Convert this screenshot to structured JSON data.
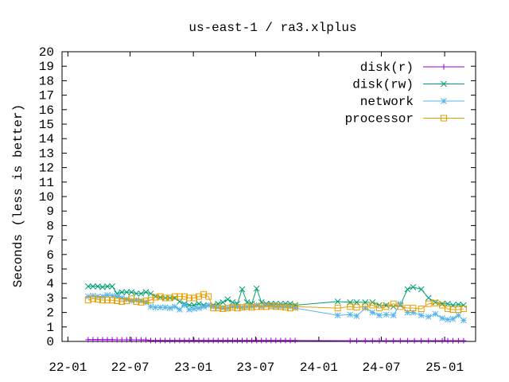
{
  "chart_data": {
    "type": "line",
    "title": "us-east-1 / ra3.xlplus",
    "xlabel": "",
    "ylabel": "Seconds (less is better)",
    "ylim": [
      0,
      20
    ],
    "xlim": [
      "2021-12-15",
      "2025-04-01"
    ],
    "yticks": [
      0,
      1,
      2,
      3,
      4,
      5,
      6,
      7,
      8,
      9,
      10,
      11,
      12,
      13,
      14,
      15,
      16,
      17,
      18,
      19,
      20
    ],
    "xticks": [
      {
        "label": "22-01",
        "date": "2022-01-01"
      },
      {
        "label": "22-07",
        "date": "2022-07-01"
      },
      {
        "label": "23-01",
        "date": "2023-01-01"
      },
      {
        "label": "23-07",
        "date": "2023-07-01"
      },
      {
        "label": "24-01",
        "date": "2024-01-01"
      },
      {
        "label": "24-07",
        "date": "2024-07-01"
      },
      {
        "label": "25-01",
        "date": "2025-01-01"
      }
    ],
    "legend_position": "top-right",
    "grid": false,
    "series": [
      {
        "name": "disk(r)",
        "color": "#9400d3",
        "marker": "plus",
        "points": [
          [
            "2022-03-01",
            0.12
          ],
          [
            "2022-03-15",
            0.12
          ],
          [
            "2022-03-29",
            0.12
          ],
          [
            "2022-04-12",
            0.12
          ],
          [
            "2022-04-26",
            0.12
          ],
          [
            "2022-05-10",
            0.12
          ],
          [
            "2022-05-24",
            0.11
          ],
          [
            "2022-06-07",
            0.11
          ],
          [
            "2022-06-21",
            0.11
          ],
          [
            "2022-07-05",
            0.11
          ],
          [
            "2022-07-19",
            0.11
          ],
          [
            "2022-08-02",
            0.1
          ],
          [
            "2022-08-16",
            0.1
          ],
          [
            "2022-08-30",
            0.06
          ],
          [
            "2022-09-13",
            0.06
          ],
          [
            "2022-09-27",
            0.06
          ],
          [
            "2022-10-11",
            0.06
          ],
          [
            "2022-10-25",
            0.06
          ],
          [
            "2022-11-08",
            0.06
          ],
          [
            "2022-11-22",
            0.06
          ],
          [
            "2022-12-06",
            0.06
          ],
          [
            "2022-12-20",
            0.06
          ],
          [
            "2023-01-03",
            0.06
          ],
          [
            "2023-01-17",
            0.06
          ],
          [
            "2023-01-31",
            0.06
          ],
          [
            "2023-02-14",
            0.06
          ],
          [
            "2023-02-28",
            0.06
          ],
          [
            "2023-03-14",
            0.06
          ],
          [
            "2023-03-28",
            0.06
          ],
          [
            "2023-04-11",
            0.06
          ],
          [
            "2023-04-25",
            0.06
          ],
          [
            "2023-05-09",
            0.06
          ],
          [
            "2023-05-23",
            0.06
          ],
          [
            "2023-06-06",
            0.06
          ],
          [
            "2023-06-20",
            0.06
          ],
          [
            "2023-07-04",
            0.06
          ],
          [
            "2023-07-18",
            0.06
          ],
          [
            "2023-08-01",
            0.06
          ],
          [
            "2023-08-15",
            0.06
          ],
          [
            "2023-08-29",
            0.06
          ],
          [
            "2023-09-12",
            0.06
          ],
          [
            "2023-09-26",
            0.06
          ],
          [
            "2023-10-10",
            0.06
          ],
          [
            "2023-10-24",
            0.06
          ],
          [
            "2024-04-01",
            0.05
          ],
          [
            "2024-04-20",
            0.05
          ],
          [
            "2024-05-15",
            0.05
          ],
          [
            "2024-06-05",
            0.05
          ],
          [
            "2024-06-25",
            0.05
          ],
          [
            "2024-07-15",
            0.05
          ],
          [
            "2024-08-05",
            0.05
          ],
          [
            "2024-08-25",
            0.05
          ],
          [
            "2024-09-15",
            0.05
          ],
          [
            "2024-10-05",
            0.05
          ],
          [
            "2024-10-25",
            0.05
          ],
          [
            "2024-11-15",
            0.05
          ],
          [
            "2024-12-05",
            0.05
          ],
          [
            "2024-12-25",
            0.05
          ],
          [
            "2025-01-10",
            0.05
          ],
          [
            "2025-01-25",
            0.05
          ],
          [
            "2025-02-10",
            0.05
          ],
          [
            "2025-02-25",
            0.05
          ]
        ]
      },
      {
        "name": "disk(rw)",
        "color": "#009e73",
        "marker": "x",
        "points": [
          [
            "2022-03-01",
            3.8
          ],
          [
            "2022-03-15",
            3.8
          ],
          [
            "2022-03-29",
            3.8
          ],
          [
            "2022-04-12",
            3.75
          ],
          [
            "2022-04-26",
            3.8
          ],
          [
            "2022-05-10",
            3.8
          ],
          [
            "2022-05-24",
            3.3
          ],
          [
            "2022-06-07",
            3.4
          ],
          [
            "2022-06-21",
            3.4
          ],
          [
            "2022-07-05",
            3.4
          ],
          [
            "2022-07-19",
            3.3
          ],
          [
            "2022-08-02",
            3.3
          ],
          [
            "2022-08-16",
            3.4
          ],
          [
            "2022-08-30",
            3.3
          ],
          [
            "2022-09-13",
            3.1
          ],
          [
            "2022-09-27",
            3.05
          ],
          [
            "2022-10-11",
            3.0
          ],
          [
            "2022-10-25",
            3.0
          ],
          [
            "2022-11-08",
            3.0
          ],
          [
            "2022-11-22",
            2.75
          ],
          [
            "2022-12-06",
            2.6
          ],
          [
            "2022-12-20",
            2.5
          ],
          [
            "2023-01-03",
            2.5
          ],
          [
            "2023-01-17",
            2.6
          ],
          [
            "2023-01-31",
            2.5
          ],
          [
            "2023-02-14",
            2.5
          ],
          [
            "2023-02-28",
            2.5
          ],
          [
            "2023-03-14",
            2.6
          ],
          [
            "2023-03-28",
            2.7
          ],
          [
            "2023-04-11",
            2.9
          ],
          [
            "2023-04-25",
            2.7
          ],
          [
            "2023-05-09",
            2.6
          ],
          [
            "2023-05-23",
            3.6
          ],
          [
            "2023-06-06",
            2.7
          ],
          [
            "2023-06-20",
            2.6
          ],
          [
            "2023-07-04",
            3.65
          ],
          [
            "2023-07-18",
            2.7
          ],
          [
            "2023-08-01",
            2.6
          ],
          [
            "2023-08-15",
            2.6
          ],
          [
            "2023-08-29",
            2.6
          ],
          [
            "2023-09-12",
            2.6
          ],
          [
            "2023-09-26",
            2.6
          ],
          [
            "2023-10-10",
            2.6
          ],
          [
            "2023-10-24",
            2.5
          ],
          [
            "2024-02-25",
            2.75
          ],
          [
            "2024-04-01",
            2.7
          ],
          [
            "2024-04-20",
            2.7
          ],
          [
            "2024-05-15",
            2.7
          ],
          [
            "2024-06-05",
            2.7
          ],
          [
            "2024-06-25",
            2.5
          ],
          [
            "2024-07-15",
            2.5
          ],
          [
            "2024-08-05",
            2.4
          ],
          [
            "2024-08-25",
            2.5
          ],
          [
            "2024-09-15",
            3.6
          ],
          [
            "2024-10-01",
            3.75
          ],
          [
            "2024-10-25",
            3.6
          ],
          [
            "2024-11-15",
            3.0
          ],
          [
            "2024-12-05",
            2.7
          ],
          [
            "2024-12-25",
            2.6
          ],
          [
            "2025-01-10",
            2.6
          ],
          [
            "2025-01-25",
            2.5
          ],
          [
            "2025-02-10",
            2.55
          ],
          [
            "2025-02-25",
            2.5
          ]
        ]
      },
      {
        "name": "network",
        "color": "#56b4e9",
        "marker": "star",
        "points": [
          [
            "2022-03-01",
            3.1
          ],
          [
            "2022-03-15",
            3.15
          ],
          [
            "2022-03-29",
            3.1
          ],
          [
            "2022-04-12",
            3.1
          ],
          [
            "2022-04-26",
            3.2
          ],
          [
            "2022-05-10",
            3.15
          ],
          [
            "2022-05-24",
            3.1
          ],
          [
            "2022-06-07",
            3.0
          ],
          [
            "2022-06-21",
            2.9
          ],
          [
            "2022-07-05",
            2.8
          ],
          [
            "2022-07-19",
            2.85
          ],
          [
            "2022-08-02",
            2.8
          ],
          [
            "2022-08-16",
            2.7
          ],
          [
            "2022-08-30",
            2.4
          ],
          [
            "2022-09-13",
            2.35
          ],
          [
            "2022-09-27",
            2.35
          ],
          [
            "2022-10-11",
            2.35
          ],
          [
            "2022-10-25",
            2.3
          ],
          [
            "2022-11-08",
            2.4
          ],
          [
            "2022-11-22",
            2.2
          ],
          [
            "2022-12-06",
            2.5
          ],
          [
            "2022-12-20",
            2.2
          ],
          [
            "2023-01-03",
            2.25
          ],
          [
            "2023-01-17",
            2.3
          ],
          [
            "2023-01-31",
            2.4
          ],
          [
            "2023-02-14",
            2.5
          ],
          [
            "2023-02-28",
            2.4
          ],
          [
            "2023-03-14",
            2.35
          ],
          [
            "2023-03-28",
            2.3
          ],
          [
            "2023-04-11",
            2.3
          ],
          [
            "2023-04-25",
            2.4
          ],
          [
            "2023-05-09",
            2.4
          ],
          [
            "2023-05-23",
            2.35
          ],
          [
            "2023-06-06",
            2.4
          ],
          [
            "2023-06-20",
            2.4
          ],
          [
            "2023-07-04",
            2.5
          ],
          [
            "2023-07-18",
            2.4
          ],
          [
            "2023-08-01",
            2.5
          ],
          [
            "2023-08-15",
            2.45
          ],
          [
            "2023-08-29",
            2.4
          ],
          [
            "2023-09-12",
            2.4
          ],
          [
            "2023-09-26",
            2.4
          ],
          [
            "2023-10-10",
            2.4
          ],
          [
            "2023-10-24",
            2.3
          ],
          [
            "2024-02-25",
            1.8
          ],
          [
            "2024-04-01",
            1.85
          ],
          [
            "2024-04-20",
            1.75
          ],
          [
            "2024-05-15",
            2.3
          ],
          [
            "2024-06-05",
            2.0
          ],
          [
            "2024-06-25",
            1.8
          ],
          [
            "2024-07-15",
            1.85
          ],
          [
            "2024-08-05",
            1.8
          ],
          [
            "2024-08-25",
            2.6
          ],
          [
            "2024-09-15",
            2.0
          ],
          [
            "2024-10-01",
            2.0
          ],
          [
            "2024-10-25",
            1.8
          ],
          [
            "2024-11-15",
            1.7
          ],
          [
            "2024-12-05",
            1.9
          ],
          [
            "2024-12-25",
            1.6
          ],
          [
            "2025-01-10",
            1.5
          ],
          [
            "2025-01-25",
            1.55
          ],
          [
            "2025-02-10",
            1.8
          ],
          [
            "2025-02-25",
            1.45
          ]
        ]
      },
      {
        "name": "processor",
        "color": "#e69f00",
        "marker": "square",
        "points": [
          [
            "2022-03-01",
            2.85
          ],
          [
            "2022-03-15",
            2.95
          ],
          [
            "2022-03-29",
            2.9
          ],
          [
            "2022-04-12",
            2.85
          ],
          [
            "2022-04-26",
            2.85
          ],
          [
            "2022-05-10",
            2.85
          ],
          [
            "2022-05-24",
            2.8
          ],
          [
            "2022-06-07",
            2.75
          ],
          [
            "2022-06-21",
            2.8
          ],
          [
            "2022-07-05",
            2.95
          ],
          [
            "2022-07-19",
            2.75
          ],
          [
            "2022-08-02",
            2.7
          ],
          [
            "2022-08-16",
            2.8
          ],
          [
            "2022-08-30",
            2.85
          ],
          [
            "2022-09-13",
            3.05
          ],
          [
            "2022-09-27",
            3.1
          ],
          [
            "2022-10-11",
            3.0
          ],
          [
            "2022-10-25",
            3.0
          ],
          [
            "2022-11-08",
            3.1
          ],
          [
            "2022-11-22",
            3.1
          ],
          [
            "2022-12-06",
            3.1
          ],
          [
            "2022-12-20",
            3.0
          ],
          [
            "2023-01-03",
            3.0
          ],
          [
            "2023-01-17",
            3.1
          ],
          [
            "2023-01-31",
            3.25
          ],
          [
            "2023-02-14",
            3.1
          ],
          [
            "2023-02-28",
            2.3
          ],
          [
            "2023-03-14",
            2.3
          ],
          [
            "2023-03-28",
            2.25
          ],
          [
            "2023-04-11",
            2.3
          ],
          [
            "2023-04-25",
            2.35
          ],
          [
            "2023-05-09",
            2.3
          ],
          [
            "2023-05-23",
            2.35
          ],
          [
            "2023-06-06",
            2.4
          ],
          [
            "2023-06-20",
            2.35
          ],
          [
            "2023-07-04",
            2.4
          ],
          [
            "2023-07-18",
            2.4
          ],
          [
            "2023-08-01",
            2.4
          ],
          [
            "2023-08-15",
            2.45
          ],
          [
            "2023-08-29",
            2.4
          ],
          [
            "2023-09-12",
            2.4
          ],
          [
            "2023-09-26",
            2.35
          ],
          [
            "2023-10-10",
            2.3
          ],
          [
            "2023-10-24",
            2.4
          ],
          [
            "2024-02-25",
            2.3
          ],
          [
            "2024-04-01",
            2.4
          ],
          [
            "2024-04-20",
            2.35
          ],
          [
            "2024-05-15",
            2.4
          ],
          [
            "2024-06-05",
            2.5
          ],
          [
            "2024-06-25",
            2.3
          ],
          [
            "2024-07-15",
            2.4
          ],
          [
            "2024-08-05",
            2.6
          ],
          [
            "2024-08-25",
            2.4
          ],
          [
            "2024-09-15",
            2.3
          ],
          [
            "2024-10-01",
            2.3
          ],
          [
            "2024-10-25",
            2.25
          ],
          [
            "2024-11-15",
            2.6
          ],
          [
            "2024-12-05",
            2.65
          ],
          [
            "2024-12-25",
            2.5
          ],
          [
            "2025-01-10",
            2.25
          ],
          [
            "2025-01-25",
            2.2
          ],
          [
            "2025-02-10",
            2.2
          ],
          [
            "2025-02-25",
            2.25
          ]
        ]
      }
    ]
  }
}
